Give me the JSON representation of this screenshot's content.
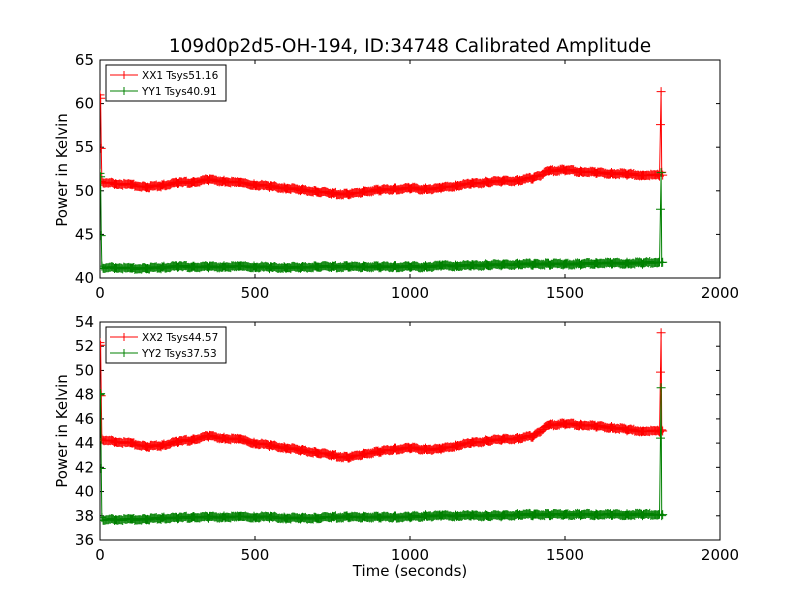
{
  "chart_data": [
    {
      "type": "line",
      "title": "109d0p2d5-OH-194, ID:34748 Calibrated Amplitude",
      "xlabel": "",
      "ylabel": "Power in Kelvin",
      "xlim": [
        0,
        2000
      ],
      "ylim": [
        40,
        65
      ],
      "xticks": [
        "0",
        "500",
        "1000",
        "1500",
        "2000"
      ],
      "yticks": [
        "40",
        "45",
        "50",
        "55",
        "60",
        "65"
      ],
      "legend_position": "top-left",
      "series": [
        {
          "name": "XX1 Tsys51.16",
          "color": "#ff0000",
          "x": [
            0,
            2,
            4,
            6,
            10,
            30,
            60,
            100,
            150,
            200,
            250,
            300,
            350,
            400,
            450,
            500,
            550,
            600,
            650,
            700,
            750,
            800,
            850,
            900,
            950,
            1000,
            1050,
            1100,
            1150,
            1200,
            1250,
            1300,
            1350,
            1400,
            1420,
            1450,
            1500,
            1550,
            1600,
            1650,
            1700,
            1750,
            1790,
            1805,
            1808,
            1810,
            1812,
            1815
          ],
          "y": [
            61,
            60.5,
            55,
            51,
            51,
            50.9,
            50.8,
            50.7,
            50.4,
            50.6,
            50.9,
            51,
            51.3,
            51.1,
            50.9,
            50.7,
            50.5,
            50.3,
            50.1,
            49.9,
            49.7,
            49.6,
            49.9,
            50.1,
            50.2,
            50.3,
            50.2,
            50.3,
            50.6,
            50.8,
            51,
            51.1,
            51.2,
            51.5,
            51.8,
            52.3,
            52.4,
            52.2,
            52.1,
            52,
            51.9,
            51.8,
            51.8,
            51.8,
            57.5,
            61.5,
            52,
            51.8
          ]
        },
        {
          "name": "YY1 Tsys40.91",
          "color": "#008000",
          "x": [
            0,
            2,
            4,
            6,
            10,
            30,
            60,
            100,
            150,
            200,
            250,
            300,
            350,
            400,
            450,
            500,
            550,
            600,
            650,
            700,
            750,
            800,
            850,
            900,
            950,
            1000,
            1050,
            1100,
            1150,
            1200,
            1250,
            1300,
            1350,
            1400,
            1450,
            1500,
            1550,
            1600,
            1650,
            1700,
            1750,
            1790,
            1805,
            1808,
            1810,
            1812,
            1815
          ],
          "y": [
            52,
            51.5,
            45,
            41.3,
            41.2,
            41.2,
            41.2,
            41.1,
            41.1,
            41.2,
            41.3,
            41.3,
            41.3,
            41.3,
            41.3,
            41.3,
            41.2,
            41.2,
            41.2,
            41.3,
            41.3,
            41.3,
            41.3,
            41.3,
            41.3,
            41.3,
            41.3,
            41.4,
            41.4,
            41.4,
            41.5,
            41.5,
            41.6,
            41.6,
            41.6,
            41.6,
            41.6,
            41.7,
            41.7,
            41.7,
            41.7,
            41.8,
            41.8,
            48,
            52,
            41.9,
            41.8
          ]
        }
      ]
    },
    {
      "type": "line",
      "title": "",
      "xlabel": "Time (seconds)",
      "ylabel": "Power in Kelvin",
      "xlim": [
        0,
        2000
      ],
      "ylim": [
        36,
        54
      ],
      "xticks": [
        "0",
        "500",
        "1000",
        "1500",
        "2000"
      ],
      "yticks": [
        "36",
        "38",
        "40",
        "42",
        "44",
        "46",
        "48",
        "50",
        "52",
        "54"
      ],
      "legend_position": "top-left",
      "series": [
        {
          "name": "XX2 Tsys44.57",
          "color": "#ff0000",
          "x": [
            0,
            2,
            4,
            6,
            10,
            30,
            60,
            100,
            150,
            200,
            250,
            300,
            350,
            400,
            450,
            500,
            550,
            600,
            650,
            700,
            750,
            800,
            850,
            900,
            950,
            1000,
            1050,
            1100,
            1150,
            1200,
            1250,
            1300,
            1350,
            1400,
            1420,
            1450,
            1500,
            1550,
            1600,
            1650,
            1700,
            1750,
            1790,
            1805,
            1808,
            1810,
            1812,
            1815
          ],
          "y": [
            52.3,
            52,
            48,
            44.3,
            44.3,
            44.2,
            44.1,
            44,
            43.7,
            43.8,
            44.1,
            44.3,
            44.6,
            44.4,
            44.3,
            44,
            43.8,
            43.6,
            43.4,
            43.2,
            43,
            42.8,
            43.1,
            43.3,
            43.5,
            43.6,
            43.5,
            43.5,
            43.8,
            44,
            44.2,
            44.3,
            44.4,
            44.6,
            45,
            45.5,
            45.6,
            45.5,
            45.4,
            45.3,
            45.1,
            45,
            45,
            45,
            49.8,
            53.2,
            45,
            45
          ]
        },
        {
          "name": "YY2 Tsys37.53",
          "color": "#008000",
          "x": [
            0,
            2,
            4,
            6,
            10,
            30,
            60,
            100,
            150,
            200,
            250,
            300,
            350,
            400,
            450,
            500,
            550,
            600,
            650,
            700,
            750,
            800,
            850,
            900,
            950,
            1000,
            1050,
            1100,
            1150,
            1200,
            1250,
            1300,
            1350,
            1400,
            1450,
            1500,
            1550,
            1600,
            1650,
            1700,
            1750,
            1790,
            1805,
            1808,
            1810,
            1812,
            1815
          ],
          "y": [
            48,
            48,
            42,
            37.8,
            37.7,
            37.7,
            37.7,
            37.7,
            37.7,
            37.8,
            37.8,
            37.9,
            37.9,
            37.9,
            37.9,
            37.9,
            37.9,
            37.8,
            37.8,
            37.8,
            37.9,
            37.9,
            37.9,
            37.9,
            37.9,
            37.9,
            38,
            38,
            38,
            38,
            38,
            38,
            38.1,
            38.1,
            38.1,
            38.1,
            38.1,
            38.1,
            38.1,
            38.1,
            38.1,
            38.1,
            38.1,
            44.5,
            48.5,
            38.1,
            38.1
          ]
        }
      ]
    }
  ]
}
